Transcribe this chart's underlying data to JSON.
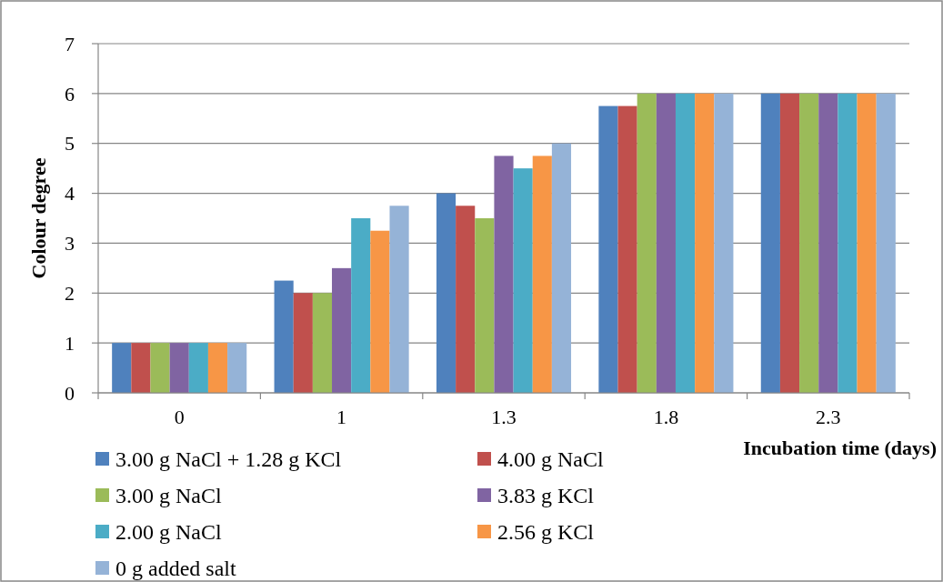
{
  "chart_data": {
    "type": "bar",
    "xlabel": "Incubation time (days)",
    "ylabel": "Colour degree",
    "categories": [
      "0",
      "1",
      "1.3",
      "1.8",
      "2.3"
    ],
    "ylim": [
      0,
      7
    ],
    "yticks": [
      0,
      1,
      2,
      3,
      4,
      5,
      6,
      7
    ],
    "grid": "y",
    "legend": "bottom",
    "series": [
      {
        "name": "3.00 g NaCl + 1.28 g KCl",
        "color": "#4f81bd",
        "values": [
          1,
          2.25,
          4,
          5.75,
          6
        ]
      },
      {
        "name": "4.00 g NaCl",
        "color": "#c0504d",
        "values": [
          1,
          2,
          3.75,
          5.75,
          6
        ]
      },
      {
        "name": "3.00 g NaCl",
        "color": "#9bbb59",
        "values": [
          1,
          2,
          3.5,
          6,
          6
        ]
      },
      {
        "name": "3.83 g KCl",
        "color": "#8064a2",
        "values": [
          1,
          2.5,
          4.75,
          6,
          6
        ]
      },
      {
        "name": "2.00 g NaCl",
        "color": "#4bacc6",
        "values": [
          1,
          3.5,
          4.5,
          6,
          6
        ]
      },
      {
        "name": "2.56 g KCl",
        "color": "#f79646",
        "values": [
          1,
          3.25,
          4.75,
          6,
          6
        ]
      },
      {
        "name": "0 g added salt",
        "color": "#95b3d7",
        "values": [
          1,
          3.75,
          5,
          6,
          6
        ]
      }
    ]
  }
}
